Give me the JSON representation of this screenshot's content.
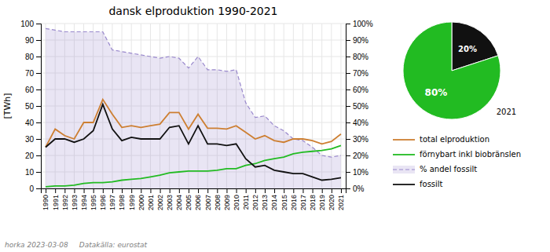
{
  "chart_data": [
    {
      "type": "line",
      "title": "dansk elproduktion 1990-2021",
      "ylabel": "[TWh]",
      "x": [
        1990,
        1991,
        1992,
        1993,
        1994,
        1995,
        1996,
        1997,
        1998,
        1999,
        2000,
        2001,
        2002,
        2003,
        2004,
        2005,
        2006,
        2007,
        2008,
        2009,
        2010,
        2011,
        2012,
        2013,
        2014,
        2015,
        2016,
        2017,
        2018,
        2019,
        2020,
        2021
      ],
      "xlim": [
        1989.5,
        2021.5
      ],
      "xticks": [
        1990,
        1991,
        1992,
        1993,
        1994,
        1995,
        1996,
        1997,
        1998,
        1999,
        2000,
        2001,
        2002,
        2003,
        2004,
        2005,
        2006,
        2007,
        2008,
        2009,
        2010,
        2011,
        2012,
        2013,
        2014,
        2015,
        2016,
        2017,
        2018,
        2019,
        2020,
        2021
      ],
      "ylim": [
        0,
        100
      ],
      "yticks": [
        0,
        10,
        20,
        30,
        40,
        50,
        60,
        70,
        80,
        90,
        100
      ],
      "y2lim": [
        0,
        100
      ],
      "y2ticks": [
        {
          "value": 0,
          "label": "0%"
        },
        {
          "value": 10,
          "label": "10%"
        },
        {
          "value": 20,
          "label": "20%"
        },
        {
          "value": 30,
          "label": "30%"
        },
        {
          "value": 40,
          "label": "40%"
        },
        {
          "value": 50,
          "label": "50%"
        },
        {
          "value": 60,
          "label": "60%"
        },
        {
          "value": 70,
          "label": "70%"
        },
        {
          "value": 80,
          "label": "80%"
        },
        {
          "value": 90,
          "label": "90%"
        },
        {
          "value": 100,
          "label": "100%"
        }
      ],
      "grid": true,
      "legend": "right",
      "series": [
        {
          "name": "total elproduktion",
          "color": "#CD7F32",
          "values": [
            25.0,
            36.0,
            32.0,
            30.0,
            40.0,
            40.0,
            54.0,
            45.0,
            37.0,
            38.0,
            37.0,
            38.0,
            39.0,
            46.0,
            46.0,
            36.0,
            45.0,
            36.5,
            36.5,
            36.0,
            38.0,
            34.0,
            30.0,
            32.0,
            29.0,
            28.0,
            30.0,
            30.0,
            29.0,
            27.0,
            28.5,
            33.0
          ]
        },
        {
          "name": "förnybart inkl biobränslen",
          "color": "#22BB22",
          "values": [
            1.0,
            1.5,
            1.5,
            2.0,
            3.0,
            3.5,
            3.5,
            4.0,
            5.0,
            5.5,
            6.0,
            7.0,
            8.0,
            9.5,
            10.0,
            10.5,
            10.5,
            10.5,
            11.0,
            12.0,
            12.0,
            14.0,
            15.0,
            17.0,
            18.0,
            19.0,
            21.0,
            22.0,
            22.5,
            23.0,
            24.0,
            26.0
          ]
        },
        {
          "name": "% andel fossilt",
          "color": "#9988CC",
          "type": "area",
          "line_style": "dashed",
          "axis": "y2",
          "values": [
            97,
            96,
            95,
            95,
            95,
            95,
            95,
            84,
            83,
            82,
            81,
            80,
            79,
            80,
            79,
            73,
            80,
            72,
            72,
            71,
            72,
            52,
            43,
            44,
            38,
            35,
            30,
            29,
            25,
            20,
            19,
            20
          ]
        },
        {
          "name": "fossilt",
          "color": "#111111",
          "values": [
            25.0,
            30.0,
            30.0,
            28.0,
            30.0,
            35.0,
            51.0,
            36.0,
            29.0,
            31.0,
            30.0,
            30.0,
            30.0,
            37.0,
            38.0,
            27.0,
            38.0,
            27.0,
            27.0,
            26.0,
            27.0,
            18.0,
            13.0,
            14.0,
            11.0,
            10.0,
            9.0,
            9.0,
            7.0,
            5.0,
            5.5,
            6.5
          ]
        }
      ],
      "annotations": [
        "horka 2023-03-08",
        "Datakälla: eurostat"
      ]
    },
    {
      "type": "pie",
      "title": "2021",
      "values": [
        20,
        80
      ],
      "colors": [
        "#111111",
        "#22BB22"
      ],
      "data_labels": true,
      "value_labels": [
        "20%",
        "80%"
      ]
    }
  ]
}
